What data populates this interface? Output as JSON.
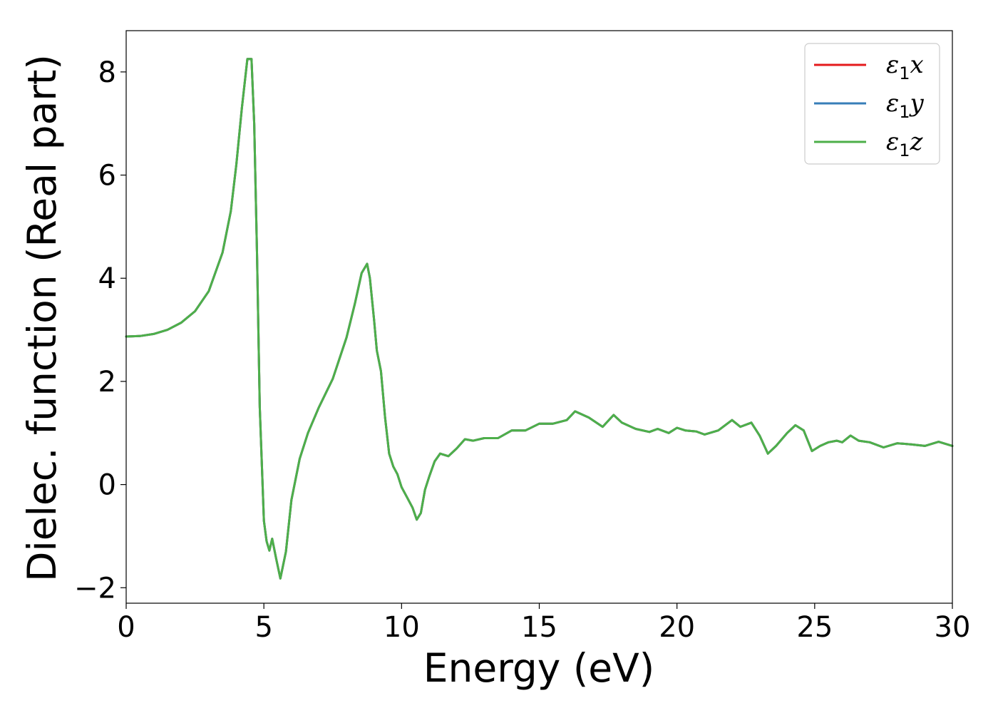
{
  "chart_data": {
    "type": "line",
    "xlabel": "Energy (eV)",
    "ylabel": "Dielec. function (Real part)",
    "xlim": [
      0,
      30
    ],
    "ylim": [
      -2.3,
      8.8
    ],
    "xticks": [
      0,
      5,
      10,
      15,
      20,
      25,
      30
    ],
    "xtick_labels": [
      "0",
      "5",
      "10",
      "15",
      "20",
      "25",
      "30"
    ],
    "yticks": [
      -2,
      0,
      2,
      4,
      6,
      8
    ],
    "ytick_labels": [
      "−2",
      "0",
      "2",
      "4",
      "6",
      "8"
    ],
    "grid": false,
    "legend_position": "top-right",
    "x": [
      0,
      0.5,
      1,
      1.5,
      2,
      2.5,
      3,
      3.5,
      3.8,
      4.0,
      4.2,
      4.4,
      4.55,
      4.65,
      4.75,
      4.85,
      5.0,
      5.1,
      5.2,
      5.3,
      5.45,
      5.6,
      5.8,
      6.0,
      6.3,
      6.6,
      7.0,
      7.5,
      8.0,
      8.3,
      8.55,
      8.75,
      8.85,
      9.0,
      9.1,
      9.25,
      9.4,
      9.55,
      9.7,
      9.85,
      10.0,
      10.2,
      10.4,
      10.55,
      10.7,
      10.85,
      11.0,
      11.2,
      11.4,
      11.7,
      12.0,
      12.3,
      12.6,
      13.0,
      13.5,
      14.0,
      14.5,
      15.0,
      15.5,
      16.0,
      16.3,
      16.8,
      17.3,
      17.7,
      18.0,
      18.5,
      19.0,
      19.3,
      19.7,
      20.0,
      20.3,
      20.7,
      21.0,
      21.5,
      22.0,
      22.3,
      22.7,
      23.0,
      23.3,
      23.6,
      24.0,
      24.3,
      24.6,
      24.9,
      25.2,
      25.5,
      25.8,
      26.0,
      26.3,
      26.6,
      27.0,
      27.5,
      28.0,
      28.5,
      29.0,
      29.5,
      30.0
    ],
    "series": [
      {
        "name": "ε₁x",
        "color": "#e41a1c",
        "values": [
          2.87,
          2.88,
          2.92,
          3.0,
          3.14,
          3.36,
          3.75,
          4.5,
          5.3,
          6.2,
          7.3,
          8.25,
          8.25,
          7.0,
          4.5,
          1.5,
          -0.7,
          -1.1,
          -1.28,
          -1.05,
          -1.45,
          -1.82,
          -1.3,
          -0.3,
          0.5,
          1.0,
          1.5,
          2.05,
          2.85,
          3.5,
          4.1,
          4.28,
          4.0,
          3.2,
          2.6,
          2.2,
          1.3,
          0.6,
          0.35,
          0.2,
          -0.05,
          -0.25,
          -0.45,
          -0.68,
          -0.55,
          -0.1,
          0.15,
          0.45,
          0.6,
          0.55,
          0.7,
          0.88,
          0.85,
          0.9,
          0.9,
          1.05,
          1.05,
          1.18,
          1.18,
          1.25,
          1.42,
          1.3,
          1.12,
          1.35,
          1.2,
          1.08,
          1.02,
          1.08,
          1.0,
          1.1,
          1.05,
          1.03,
          0.97,
          1.05,
          1.25,
          1.12,
          1.2,
          0.95,
          0.6,
          0.75,
          1.0,
          1.15,
          1.05,
          0.65,
          0.75,
          0.82,
          0.85,
          0.82,
          0.95,
          0.85,
          0.82,
          0.72,
          0.8,
          0.78,
          0.75,
          0.83,
          0.75
        ]
      },
      {
        "name": "ε₁y",
        "color": "#377eb8",
        "values": [
          2.87,
          2.88,
          2.92,
          3.0,
          3.14,
          3.36,
          3.75,
          4.5,
          5.3,
          6.2,
          7.3,
          8.25,
          8.25,
          7.0,
          4.5,
          1.5,
          -0.7,
          -1.1,
          -1.28,
          -1.05,
          -1.45,
          -1.82,
          -1.3,
          -0.3,
          0.5,
          1.0,
          1.5,
          2.05,
          2.85,
          3.5,
          4.1,
          4.28,
          4.0,
          3.2,
          2.6,
          2.2,
          1.3,
          0.6,
          0.35,
          0.2,
          -0.05,
          -0.25,
          -0.45,
          -0.68,
          -0.55,
          -0.1,
          0.15,
          0.45,
          0.6,
          0.55,
          0.7,
          0.88,
          0.85,
          0.9,
          0.9,
          1.05,
          1.05,
          1.18,
          1.18,
          1.25,
          1.42,
          1.3,
          1.12,
          1.35,
          1.2,
          1.08,
          1.02,
          1.08,
          1.0,
          1.1,
          1.05,
          1.03,
          0.97,
          1.05,
          1.25,
          1.12,
          1.2,
          0.95,
          0.6,
          0.75,
          1.0,
          1.15,
          1.05,
          0.65,
          0.75,
          0.82,
          0.85,
          0.82,
          0.95,
          0.85,
          0.82,
          0.72,
          0.8,
          0.78,
          0.75,
          0.83,
          0.75
        ]
      },
      {
        "name": "ε₁z",
        "color": "#4daf4a",
        "values": [
          2.87,
          2.88,
          2.92,
          3.0,
          3.14,
          3.36,
          3.75,
          4.5,
          5.3,
          6.2,
          7.3,
          8.25,
          8.25,
          7.0,
          4.5,
          1.5,
          -0.7,
          -1.1,
          -1.28,
          -1.05,
          -1.45,
          -1.82,
          -1.3,
          -0.3,
          0.5,
          1.0,
          1.5,
          2.05,
          2.85,
          3.5,
          4.1,
          4.28,
          4.0,
          3.2,
          2.6,
          2.2,
          1.3,
          0.6,
          0.35,
          0.2,
          -0.05,
          -0.25,
          -0.45,
          -0.68,
          -0.55,
          -0.1,
          0.15,
          0.45,
          0.6,
          0.55,
          0.7,
          0.88,
          0.85,
          0.9,
          0.9,
          1.05,
          1.05,
          1.18,
          1.18,
          1.25,
          1.42,
          1.3,
          1.12,
          1.35,
          1.2,
          1.08,
          1.02,
          1.08,
          1.0,
          1.1,
          1.05,
          1.03,
          0.97,
          1.05,
          1.25,
          1.12,
          1.2,
          0.95,
          0.6,
          0.75,
          1.0,
          1.15,
          1.05,
          0.65,
          0.75,
          0.82,
          0.85,
          0.82,
          0.95,
          0.85,
          0.82,
          0.72,
          0.8,
          0.78,
          0.75,
          0.83,
          0.75
        ]
      }
    ]
  }
}
